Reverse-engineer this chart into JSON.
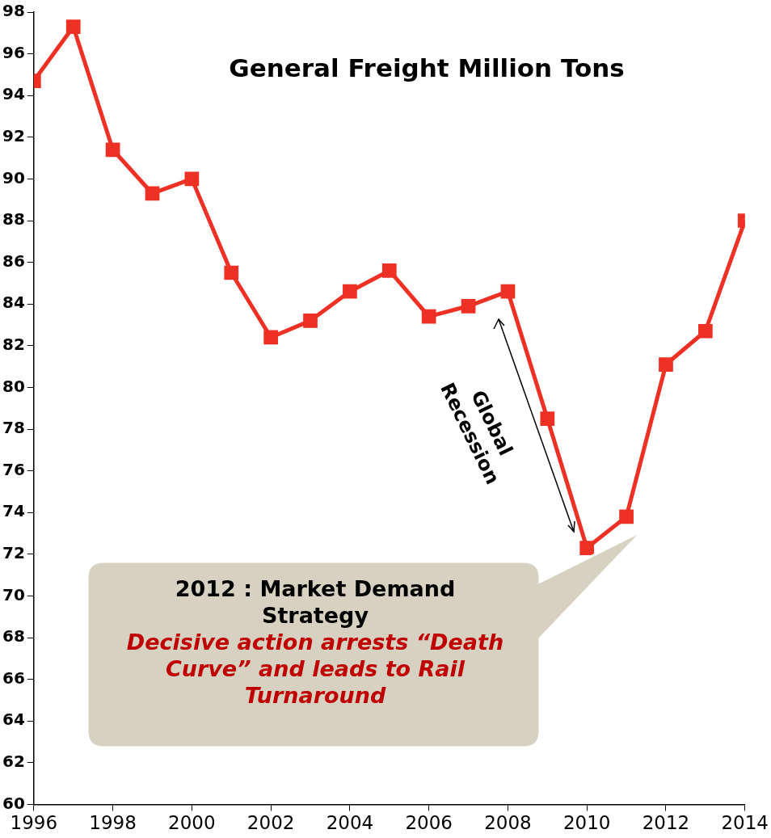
{
  "chart_data": {
    "type": "line",
    "title": "General Freight Million Tons",
    "x": [
      1996,
      1997,
      1998,
      1999,
      2000,
      2001,
      2002,
      2003,
      2004,
      2005,
      2006,
      2007,
      2008,
      2009,
      2010,
      2011,
      2012,
      2013,
      2014
    ],
    "series": [
      {
        "color": "#ee3124",
        "values": [
          94.7,
          97.3,
          91.4,
          89.3,
          90.0,
          85.5,
          82.4,
          83.2,
          84.6,
          85.6,
          83.4,
          83.9,
          84.6,
          78.5,
          72.3,
          73.8,
          81.1,
          82.7,
          88.0
        ]
      }
    ],
    "xlim": [
      1996,
      2014
    ],
    "xticks": [
      1996,
      1998,
      2000,
      2002,
      2004,
      2006,
      2008,
      2010,
      2012,
      2014
    ],
    "ylim": [
      60,
      98
    ],
    "yticks": [
      60,
      62,
      64,
      66,
      68,
      70,
      72,
      74,
      76,
      78,
      80,
      82,
      84,
      86,
      88,
      90,
      92,
      94,
      96,
      98
    ],
    "grid": false,
    "legend": false,
    "marker": "square",
    "line_style": "solid",
    "annotations": [
      "Global Recession",
      "2012 : Market Demand Strategy",
      "Decisive action arrests “Death Curve” and leads to Rail Turnaround"
    ]
  }
}
